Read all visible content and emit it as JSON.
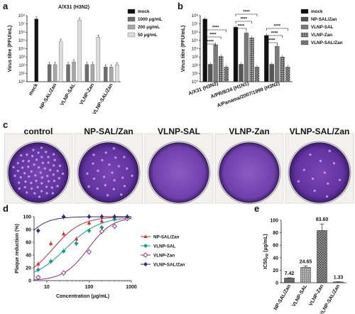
{
  "panels": {
    "a": "a",
    "b": "b",
    "c": "c",
    "d": "d",
    "e": "e"
  },
  "chart_data": [
    {
      "id": "a",
      "type": "bar",
      "title": "A/X31 (H3N2)",
      "ylabel": "Virus titre (PFU/mL)",
      "y_scale": "log",
      "ylim": [
        1,
        100000000
      ],
      "y_ticks": [
        "10⁰",
        "10¹",
        "10²",
        "10³",
        "10⁴",
        "10⁵",
        "10⁶",
        "10⁷",
        "10⁸"
      ],
      "categories": [
        "mock",
        "NP-SAL/Zan",
        "VLNP-SAL",
        "VLNP-Zan",
        "VLNP-SAL/Zan"
      ],
      "series": [
        {
          "name": "mock",
          "color": "#111111",
          "values": [
            40000000,
            null,
            null,
            null,
            null
          ]
        },
        {
          "name": "1000 μg/mL",
          "color": "#6e6e6e",
          "values": [
            null,
            120,
            120,
            120,
            60
          ]
        },
        {
          "name": "200 μg/mL",
          "color": "#a8a8a8",
          "values": [
            null,
            120,
            250,
            120,
            60
          ]
        },
        {
          "name": "50 μg/mL",
          "color": "#dcdcdc",
          "values": [
            null,
            80000,
            30000000,
            250000,
            110
          ]
        }
      ],
      "legend": "right"
    },
    {
      "id": "b",
      "type": "bar",
      "ylabel": "Virus titre (PFU/mL)",
      "y_scale": "log",
      "ylim": [
        1,
        100000000
      ],
      "y_ticks": [
        "10⁰",
        "10¹",
        "10²",
        "10³",
        "10⁴",
        "10⁵",
        "10⁶",
        "10⁷",
        "10⁸"
      ],
      "categories": [
        "A/X31 (H3N2)",
        "A/PR/8/34 (H1N1)",
        "A/Panama/2007/1999 (H3N2)"
      ],
      "series": [
        {
          "name": "mock",
          "color": "#111111",
          "values": [
            40000000,
            4000000,
            400000
          ]
        },
        {
          "name": "NP-SAL/Zan",
          "color": "#555555",
          "values": [
            130,
            130,
            130
          ]
        },
        {
          "name": "VLNP-SAL",
          "color": "#7a7a7a",
          "values": [
            30000,
            800000,
            20000
          ]
        },
        {
          "name": "VLNP-Zan",
          "color": "#bdbdbd",
          "values": [
            1200,
            200000,
            1000
          ]
        },
        {
          "name": "VLNP-SAL/Zan",
          "color": "#949494",
          "values": [
            60,
            60,
            60
          ]
        }
      ],
      "significance": [
        "****",
        "****",
        "****",
        "****",
        "****",
        "****",
        "****",
        "****",
        "****"
      ],
      "legend": "right"
    },
    {
      "id": "d",
      "type": "scatter",
      "xlabel": "Concentration (μg/mL)",
      "ylabel": "Plaque reduction (%)",
      "x_scale": "log",
      "xlim": [
        5,
        1000
      ],
      "ylim": [
        0,
        100
      ],
      "x_ticks": [
        "10",
        "100",
        "1000"
      ],
      "y_ticks": [
        "0",
        "20",
        "40",
        "60",
        "80",
        "100"
      ],
      "series": [
        {
          "name": "NP-SAL/Zan",
          "color": "#d42a2a",
          "marker": "triangle",
          "x": [
            6.25,
            12.5,
            25,
            50,
            100,
            200,
            400,
            800
          ],
          "y": [
            26,
            58,
            73,
            65,
            90,
            93,
            97,
            98
          ]
        },
        {
          "name": "VLNP-SAL",
          "color": "#169a82",
          "marker": "diamond",
          "x": [
            6.25,
            12.5,
            25,
            50,
            100,
            200,
            400,
            800
          ],
          "y": [
            17,
            30,
            46,
            58,
            78,
            83,
            96,
            98
          ]
        },
        {
          "name": "VLNP-Zan",
          "color": "#8e2a7a",
          "marker": "open-diamond",
          "x": [
            6.25,
            25,
            100,
            200,
            400,
            800
          ],
          "y": [
            5,
            12,
            45,
            77,
            85,
            97
          ]
        },
        {
          "name": "VLNP-SAL/Zan",
          "color": "#2c2a78",
          "marker": "diamond",
          "x": [
            6.25,
            25,
            100,
            200,
            400,
            800
          ],
          "y": [
            78,
            100,
            100,
            100,
            100,
            100
          ]
        }
      ],
      "fit_curves": [
        {
          "series": "NP-SAL/Zan",
          "ec50": 14,
          "hill": 1.3
        },
        {
          "series": "VLNP-SAL",
          "ec50": 28,
          "hill": 1.1
        },
        {
          "series": "VLNP-Zan",
          "ec50": 95,
          "hill": 1.5
        },
        {
          "series": "VLNP-SAL/Zan",
          "ec50": 2.2,
          "hill": 1.6
        }
      ],
      "legend": "right"
    },
    {
      "id": "e",
      "type": "bar",
      "ylabel": "IC50",
      "ylabel_sub": "PR",
      "ylabel_unit": " (μg/mL)",
      "ylim": [
        0,
        100
      ],
      "y_ticks": [
        "0",
        "20",
        "40",
        "60",
        "80",
        "100"
      ],
      "categories": [
        "NP-SAL/Zan",
        "VLNP-SAL",
        "VLNP-Zan",
        "VLNP-SAL/Zan"
      ],
      "values": [
        7.42,
        24.65,
        83.6,
        1.33
      ],
      "value_labels": [
        "7.42",
        "24.65",
        "83.60",
        "1.33"
      ],
      "errors": [
        0.6,
        2.2,
        10.5,
        0.3
      ],
      "colors": [
        "#6a6a6a",
        "#9a9a9a",
        "#6a6a6a",
        "#777777"
      ]
    }
  ],
  "plates": {
    "titles": [
      "control",
      "NP-SAL/Zan",
      "VLNP-SAL",
      "VLNP-Zan",
      "VLNP-SAL/Zan"
    ],
    "stain_color": "#6b3ca0"
  }
}
